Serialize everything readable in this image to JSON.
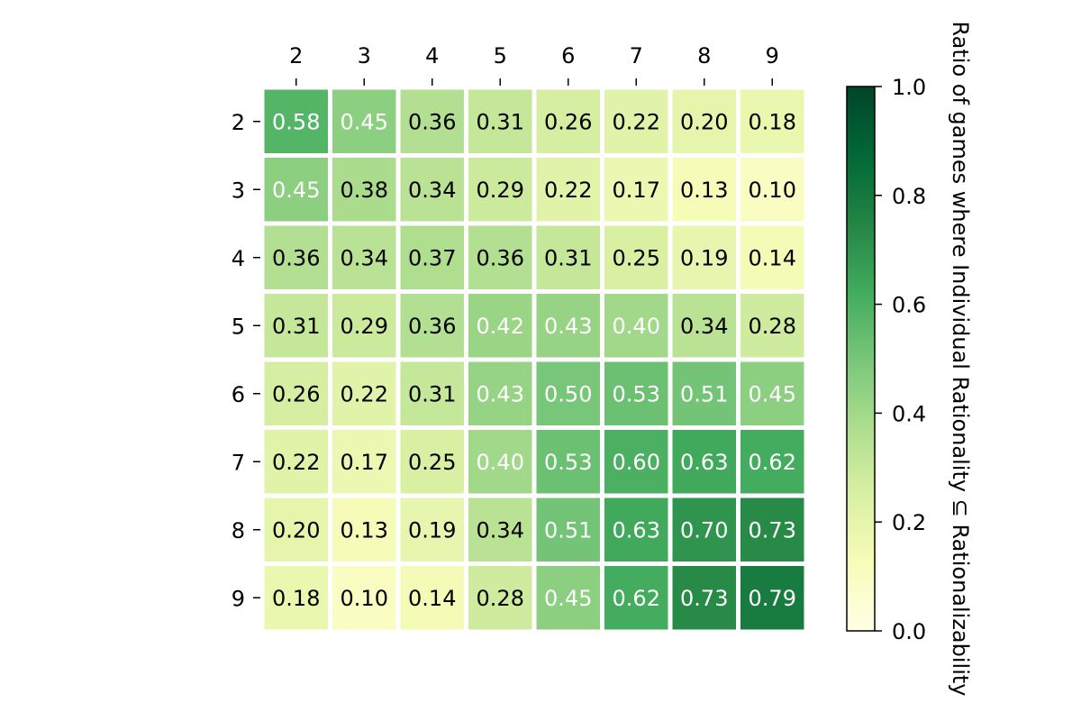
{
  "chart_data": {
    "type": "heatmap",
    "title": "",
    "x_ticks": [
      "2",
      "3",
      "4",
      "5",
      "6",
      "7",
      "8",
      "9"
    ],
    "y_ticks": [
      "2",
      "3",
      "4",
      "5",
      "6",
      "7",
      "8",
      "9"
    ],
    "values": [
      [
        0.58,
        0.45,
        0.36,
        0.31,
        0.26,
        0.22,
        0.2,
        0.18
      ],
      [
        0.45,
        0.38,
        0.34,
        0.29,
        0.22,
        0.17,
        0.13,
        0.1
      ],
      [
        0.36,
        0.34,
        0.37,
        0.36,
        0.31,
        0.25,
        0.19,
        0.14
      ],
      [
        0.31,
        0.29,
        0.36,
        0.42,
        0.43,
        0.4,
        0.34,
        0.28
      ],
      [
        0.26,
        0.22,
        0.31,
        0.43,
        0.5,
        0.53,
        0.51,
        0.45
      ],
      [
        0.22,
        0.17,
        0.25,
        0.4,
        0.53,
        0.6,
        0.63,
        0.62
      ],
      [
        0.2,
        0.13,
        0.19,
        0.34,
        0.51,
        0.63,
        0.7,
        0.73
      ],
      [
        0.18,
        0.1,
        0.14,
        0.28,
        0.45,
        0.62,
        0.73,
        0.79
      ]
    ],
    "value_format": "0.00",
    "text_white_above": 0.39,
    "colormap": {
      "name": "YlGn",
      "stops": [
        "#ffffe5",
        "#f7fcb9",
        "#d9f0a3",
        "#addd8e",
        "#78c679",
        "#41ab5d",
        "#238443",
        "#006837",
        "#004529"
      ]
    },
    "vmin": 0.0,
    "vmax": 1.0,
    "colorbar": {
      "ticks": [
        "0.0",
        "0.2",
        "0.4",
        "0.6",
        "0.8",
        "1.0"
      ],
      "tick_values": [
        0.0,
        0.2,
        0.4,
        0.6,
        0.8,
        1.0
      ],
      "label": "Ratio of games where Individual Rationality ⊆ Rationalizability",
      "position": "right"
    },
    "grid": false,
    "x_axis_position": "top"
  }
}
